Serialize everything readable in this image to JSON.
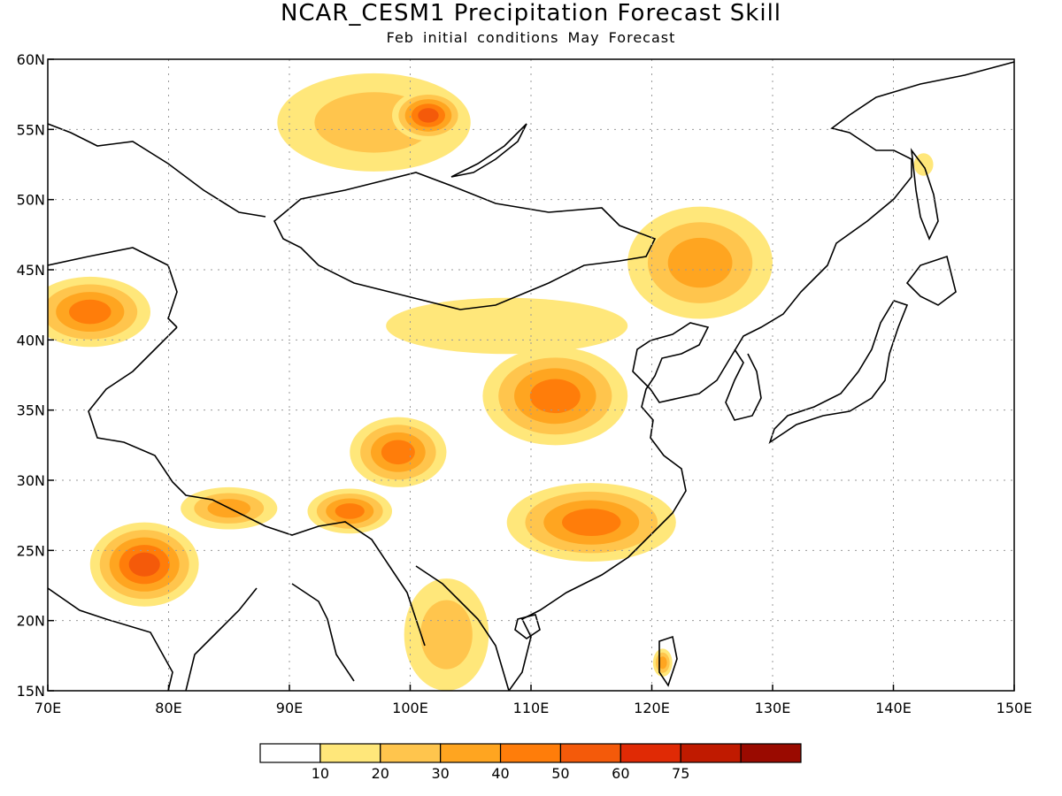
{
  "title": "NCAR_CESM1 Precipitation Forecast Skill",
  "subtitle": "Feb initial conditions  May Forecast",
  "map": {
    "lon_range": [
      70,
      150
    ],
    "lat_range": [
      15,
      60
    ],
    "x_ticks": [
      "70E",
      "80E",
      "90E",
      "100E",
      "110E",
      "120E",
      "130E",
      "140E",
      "150E"
    ],
    "y_ticks": [
      "15N",
      "20N",
      "25N",
      "30N",
      "35N",
      "40N",
      "45N",
      "50N",
      "55N",
      "60N"
    ],
    "gridlines": "dotted"
  },
  "colorbar": {
    "bins": [
      {
        "color": "#ffffff"
      },
      {
        "color": "#ffe77a",
        "label": "10"
      },
      {
        "color": "#ffc54d",
        "label": "20"
      },
      {
        "color": "#ffa520",
        "label": "30"
      },
      {
        "color": "#ff7d0a",
        "label": "40"
      },
      {
        "color": "#f45a0a",
        "label": "50"
      },
      {
        "color": "#e02a05",
        "label": "60"
      },
      {
        "color": "#c01a00",
        "label": "75"
      },
      {
        "color": "#9a0a00"
      }
    ]
  },
  "skill_regions": [
    {
      "name": "central-siberia",
      "lon": 97,
      "lat": 55.5,
      "rx": 8,
      "ry": 3.5,
      "level": 2
    },
    {
      "name": "baikal-west",
      "lon": 101.5,
      "lat": 56,
      "rx": 3,
      "ry": 1.8,
      "level": 5
    },
    {
      "name": "northeast-china",
      "lon": 124,
      "lat": 45.5,
      "rx": 6,
      "ry": 4,
      "level": 3
    },
    {
      "name": "kazakh-east",
      "lon": 73.5,
      "lat": 42,
      "rx": 5,
      "ry": 2.5,
      "level": 4
    },
    {
      "name": "loess-plateau",
      "lon": 112,
      "lat": 36,
      "rx": 6,
      "ry": 3.5,
      "level": 4
    },
    {
      "name": "tibet-east",
      "lon": 99,
      "lat": 32,
      "rx": 4,
      "ry": 2.5,
      "level": 4
    },
    {
      "name": "yangtze-south",
      "lon": 115,
      "lat": 27,
      "rx": 7,
      "ry": 2.8,
      "level": 4
    },
    {
      "name": "india-central",
      "lon": 78,
      "lat": 24,
      "rx": 4.5,
      "ry": 3,
      "level": 5
    },
    {
      "name": "himalaya-east",
      "lon": 95,
      "lat": 27.8,
      "rx": 3.5,
      "ry": 1.6,
      "level": 4
    },
    {
      "name": "nepal",
      "lon": 85,
      "lat": 28,
      "rx": 4,
      "ry": 1.5,
      "level": 3
    },
    {
      "name": "indochina",
      "lon": 103,
      "lat": 19,
      "rx": 3.5,
      "ry": 4,
      "level": 2
    },
    {
      "name": "mongolia-south",
      "lon": 108,
      "lat": 41,
      "rx": 10,
      "ry": 2,
      "level": 1
    },
    {
      "name": "taiwan",
      "lon": 120.9,
      "lat": 17,
      "rx": 0.8,
      "ry": 1,
      "level": 3
    },
    {
      "name": "hokkaido",
      "lon": 142.5,
      "lat": 52.5,
      "rx": 0.8,
      "ry": 0.8,
      "level": 1
    }
  ]
}
